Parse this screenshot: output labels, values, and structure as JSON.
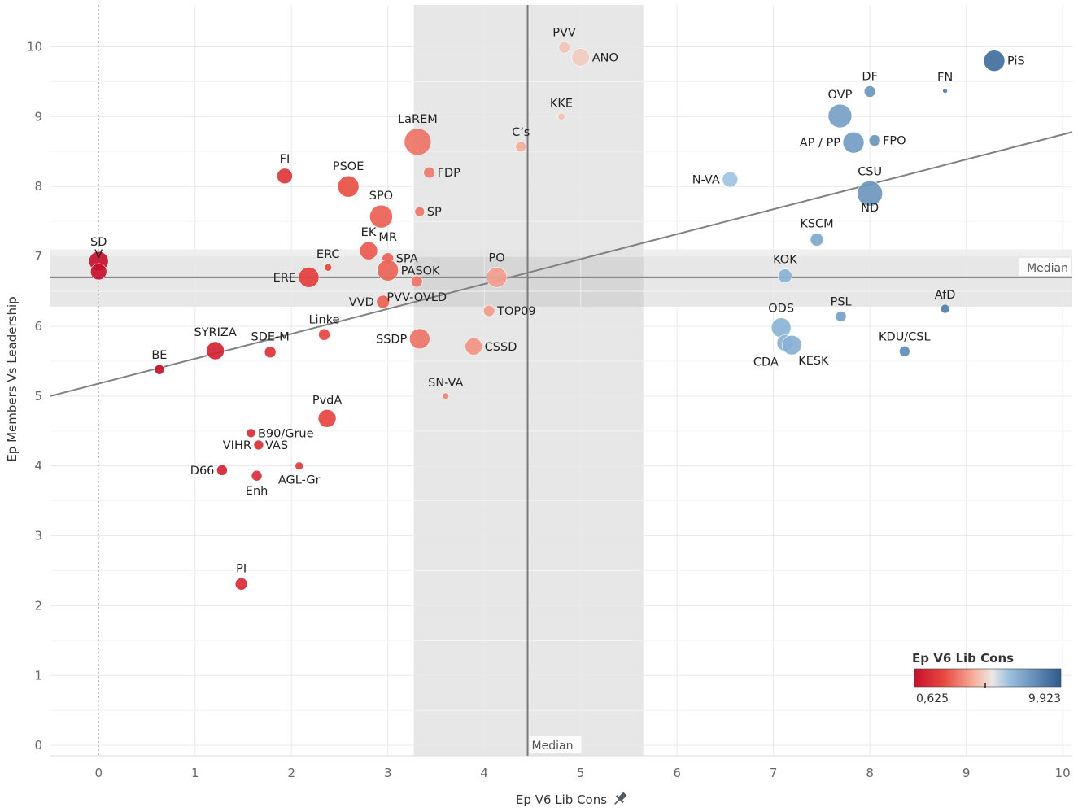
{
  "chart_data": {
    "type": "scatter",
    "xlabel": "Ep V6 Lib Cons",
    "ylabel": "Ep Members Vs Leadership",
    "xlim": [
      -0.5,
      10.1
    ],
    "ylim": [
      -0.15,
      10.6
    ],
    "x_ticks": [
      0,
      1,
      2,
      3,
      4,
      5,
      6,
      7,
      8,
      9,
      10
    ],
    "y_ticks": [
      0,
      1,
      2,
      3,
      4,
      5,
      6,
      7,
      8,
      9,
      10
    ],
    "median_x": 4.45,
    "median_y": 6.7,
    "median_label": "Median",
    "band_x": [
      3.27,
      5.65
    ],
    "band_y": [
      6.28,
      7.1
    ],
    "trend_line": {
      "x1": -0.5,
      "y1": 5.0,
      "x2": 10.1,
      "y2": 8.78
    },
    "color_legend": {
      "title": "Ep V6 Lib Cons",
      "min_label": "0,625",
      "max_label": "9,923",
      "min": 0.625,
      "max": 9.923,
      "low_color": "#c8102e",
      "mid_color": "#f2ece8",
      "high_color": "#2c5a8c"
    },
    "points": [
      {
        "label": "SD",
        "x": 0.0,
        "y": 6.93,
        "size": 12,
        "label_pos": "above"
      },
      {
        "label": "V",
        "x": 0.0,
        "y": 6.78,
        "size": 10,
        "label_pos": "above"
      },
      {
        "label": "BE",
        "x": 0.63,
        "y": 5.38,
        "size": 6,
        "label_pos": "above"
      },
      {
        "label": "SYRIZA",
        "x": 1.21,
        "y": 5.65,
        "size": 11,
        "label_pos": "above"
      },
      {
        "label": "SDE-M",
        "x": 1.78,
        "y": 5.63,
        "size": 7,
        "label_pos": "above"
      },
      {
        "label": "D66",
        "x": 1.28,
        "y": 3.94,
        "size": 6.5,
        "label_pos": "left"
      },
      {
        "label": "PI",
        "x": 1.48,
        "y": 2.31,
        "size": 7.5,
        "label_pos": "above"
      },
      {
        "label": "B90/Grue",
        "x": 1.58,
        "y": 4.47,
        "size": 5.5,
        "label_pos": "right"
      },
      {
        "label": "VIHR",
        "x": 1.66,
        "y": 4.3,
        "size": 6,
        "label_pos": "left"
      },
      {
        "label": "VAS",
        "x": 1.66,
        "y": 4.3,
        "size": 0,
        "label_pos": "right"
      },
      {
        "label": "Enh",
        "x": 1.64,
        "y": 3.86,
        "size": 6.5,
        "label_pos": "below"
      },
      {
        "label": "FI",
        "x": 1.93,
        "y": 8.15,
        "size": 9.5,
        "label_pos": "above"
      },
      {
        "label": "AGL-Gr",
        "x": 2.08,
        "y": 4.0,
        "size": 5,
        "label_pos": "below"
      },
      {
        "label": "ERE",
        "x": 2.18,
        "y": 6.7,
        "size": 12.5,
        "label_pos": "left"
      },
      {
        "label": "Linke",
        "x": 2.34,
        "y": 5.88,
        "size": 7,
        "label_pos": "above"
      },
      {
        "label": "PvdA",
        "x": 2.37,
        "y": 4.68,
        "size": 11,
        "label_pos": "above"
      },
      {
        "label": "ERC",
        "x": 2.38,
        "y": 6.84,
        "size": 4.5,
        "label_pos": "above"
      },
      {
        "label": "PSOE",
        "x": 2.59,
        "y": 8.0,
        "size": 13,
        "label_pos": "above"
      },
      {
        "label": "EK",
        "x": 2.8,
        "y": 7.08,
        "size": 11,
        "label_pos": "above"
      },
      {
        "label": "SPO",
        "x": 2.93,
        "y": 7.57,
        "size": 14,
        "label_pos": "above"
      },
      {
        "label": "VVD",
        "x": 2.95,
        "y": 6.35,
        "size": 8,
        "label_pos": "left"
      },
      {
        "label": "MR",
        "x": 3.0,
        "y": 7.08,
        "size": 0,
        "label_pos": "above"
      },
      {
        "label": "SPA",
        "x": 3.0,
        "y": 6.97,
        "size": 7,
        "label_pos": "right"
      },
      {
        "label": "PASOK",
        "x": 3.0,
        "y": 6.8,
        "size": 13,
        "label_pos": "right"
      },
      {
        "label": "PVV-OVLD",
        "x": 3.3,
        "y": 6.64,
        "size": 7,
        "label_pos": "below"
      },
      {
        "label": "LaREM",
        "x": 3.31,
        "y": 8.64,
        "size": 16.5,
        "label_pos": "above"
      },
      {
        "label": "SP",
        "x": 3.33,
        "y": 7.64,
        "size": 6,
        "label_pos": "right"
      },
      {
        "label": "SSDP",
        "x": 3.33,
        "y": 5.82,
        "size": 12.5,
        "label_pos": "left"
      },
      {
        "label": "FDP",
        "x": 3.43,
        "y": 8.2,
        "size": 7,
        "label_pos": "right"
      },
      {
        "label": "SN-VA",
        "x": 3.6,
        "y": 5.0,
        "size": 4,
        "label_pos": "above"
      },
      {
        "label": "CSSD",
        "x": 3.89,
        "y": 5.71,
        "size": 10.5,
        "label_pos": "right"
      },
      {
        "label": "TOP09",
        "x": 4.05,
        "y": 6.22,
        "size": 7,
        "label_pos": "right"
      },
      {
        "label": "PO",
        "x": 4.13,
        "y": 6.7,
        "size": 12.5,
        "label_pos": "above"
      },
      {
        "label": "C’s",
        "x": 4.38,
        "y": 8.57,
        "size": 6.5,
        "label_pos": "above"
      },
      {
        "label": "KKE",
        "x": 4.8,
        "y": 9.0,
        "size": 4.5,
        "label_pos": "above"
      },
      {
        "label": "PVV",
        "x": 4.83,
        "y": 9.99,
        "size": 7,
        "label_pos": "above"
      },
      {
        "label": "ANO",
        "x": 5.0,
        "y": 9.85,
        "size": 11,
        "label_pos": "right"
      },
      {
        "label": "N-VA",
        "x": 6.55,
        "y": 8.1,
        "size": 9.5,
        "label_pos": "left"
      },
      {
        "label": "ODS",
        "x": 7.08,
        "y": 5.98,
        "size": 12,
        "label_pos": "above"
      },
      {
        "label": "KOK",
        "x": 7.12,
        "y": 6.72,
        "size": 8.5,
        "label_pos": "above"
      },
      {
        "label": "CDA",
        "x": 7.12,
        "y": 5.76,
        "size": 10,
        "label_pos": "below-left"
      },
      {
        "label": "KESK",
        "x": 7.19,
        "y": 5.73,
        "size": 12,
        "label_pos": "below-right"
      },
      {
        "label": "KSCM",
        "x": 7.45,
        "y": 7.24,
        "size": 8,
        "label_pos": "above"
      },
      {
        "label": "OVP",
        "x": 7.69,
        "y": 9.01,
        "size": 14.5,
        "label_pos": "above"
      },
      {
        "label": "PSL",
        "x": 7.7,
        "y": 6.14,
        "size": 6.5,
        "label_pos": "above"
      },
      {
        "label": "AP / PP",
        "x": 7.83,
        "y": 8.63,
        "size": 13,
        "label_pos": "left"
      },
      {
        "label": "CSU",
        "x": 8.0,
        "y": 7.9,
        "size": 15.5,
        "label_pos": "above"
      },
      {
        "label": "ND",
        "x": 8.0,
        "y": 7.9,
        "size": 0,
        "label_pos": "below"
      },
      {
        "label": "DF",
        "x": 8.0,
        "y": 9.36,
        "size": 7,
        "label_pos": "above"
      },
      {
        "label": "FPO",
        "x": 8.05,
        "y": 8.66,
        "size": 7,
        "label_pos": "right"
      },
      {
        "label": "KDU/CSL",
        "x": 8.36,
        "y": 5.64,
        "size": 6.5,
        "label_pos": "above"
      },
      {
        "label": "AfD",
        "x": 8.78,
        "y": 6.25,
        "size": 5.5,
        "label_pos": "above"
      },
      {
        "label": "FN",
        "x": 8.78,
        "y": 9.37,
        "size": 3,
        "label_pos": "above"
      },
      {
        "label": "PiS",
        "x": 9.29,
        "y": 9.8,
        "size": 13,
        "label_pos": "right"
      }
    ]
  }
}
